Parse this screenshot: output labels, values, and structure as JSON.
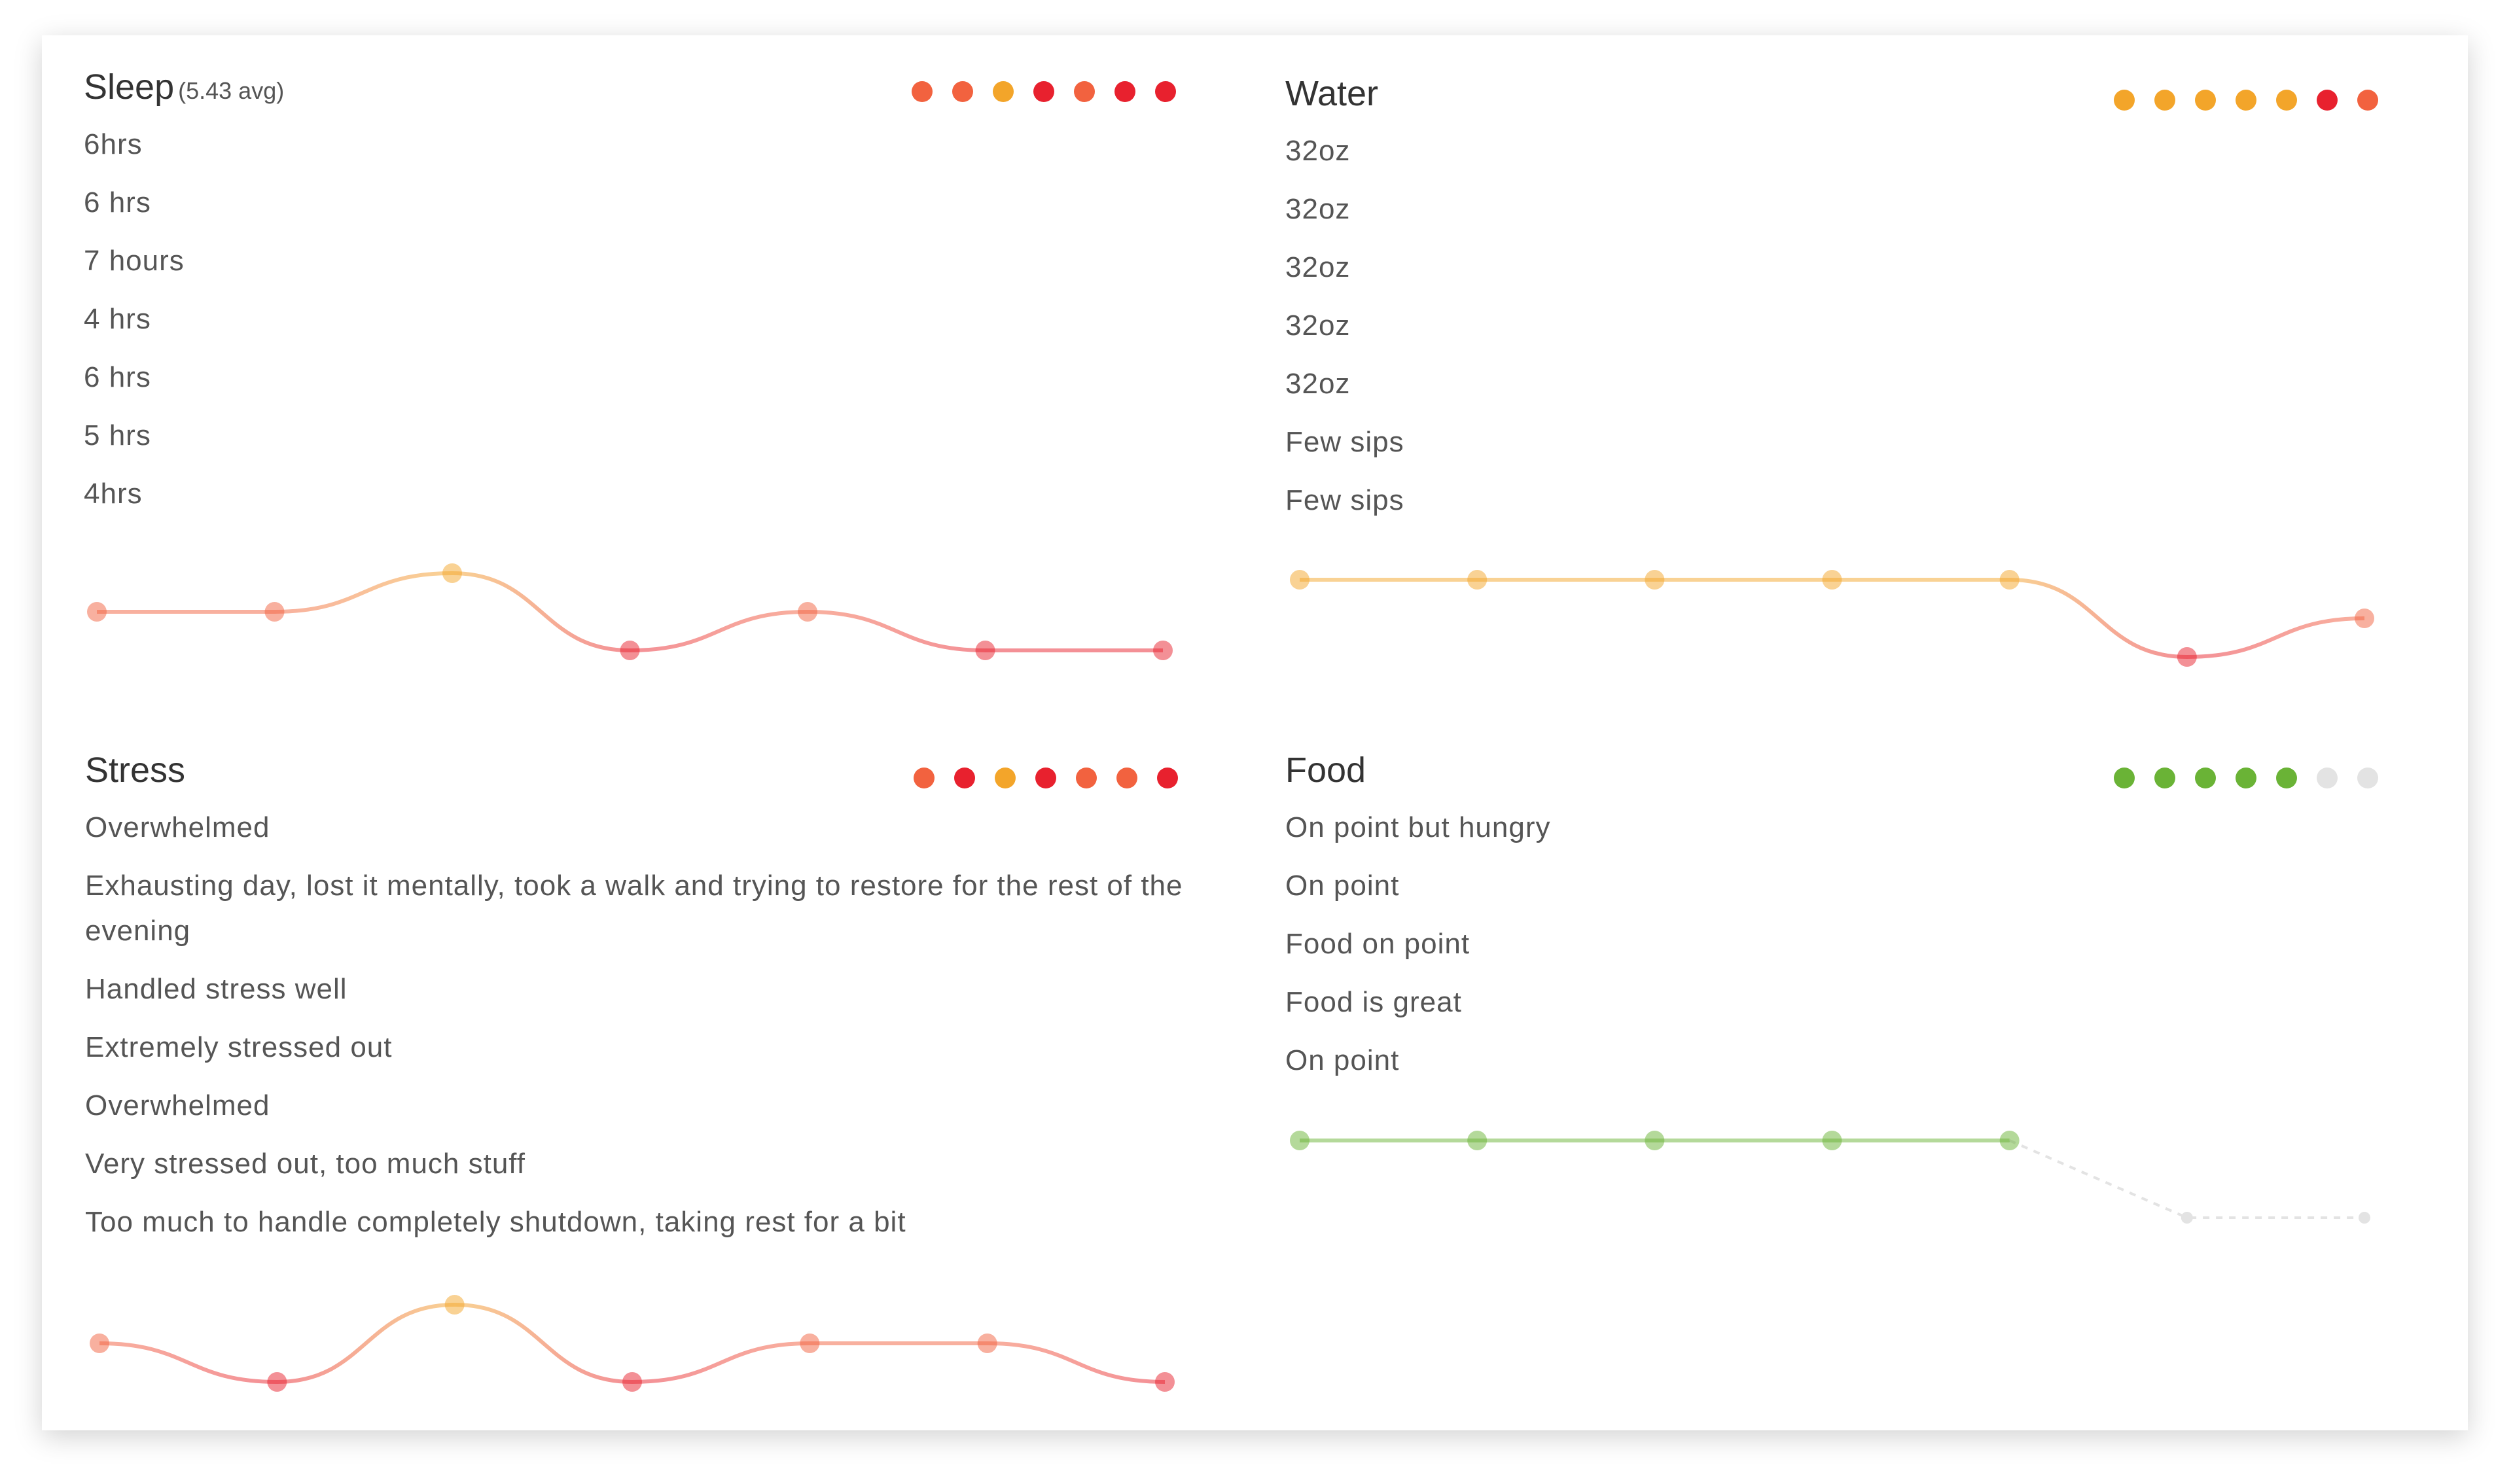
{
  "panels": [
    {
      "title": "Sleep",
      "avg": "(5.43 avg)",
      "entries": [
        "6hrs",
        "6 hrs",
        "7 hours",
        "4 hrs",
        "6 hrs",
        "5 hrs",
        "4hrs"
      ],
      "levels": [
        2,
        2,
        3,
        1,
        2,
        1,
        1
      ],
      "ylim": [
        1,
        3
      ],
      "colors": [
        "#e8212e",
        "#f2623f",
        "#f3a52a"
      ]
    },
    {
      "title": "Water",
      "entries": [
        "32oz",
        "32oz",
        "32oz",
        "32oz",
        "32oz",
        "Few sips",
        "Few sips"
      ],
      "levels": [
        3,
        3,
        3,
        3,
        3,
        1,
        2
      ],
      "ylim": [
        1,
        3
      ],
      "colors": [
        "#e8212e",
        "#f2623f",
        "#f3a52a"
      ]
    },
    {
      "title": "Stress",
      "entries": [
        "Overwhelmed",
        "Exhausting day, lost it mentally, took a walk and trying to restore for the rest of the evening",
        "Handled stress well",
        "Extremely stressed out",
        "Overwhelmed",
        "Very stressed out, too much stuff",
        "Too much to handle completely shutdown, taking rest for a bit"
      ],
      "levels": [
        2,
        1,
        3,
        1,
        2,
        2,
        1
      ],
      "ylim": [
        1,
        3
      ],
      "colors": [
        "#e8212e",
        "#f2623f",
        "#f3a52a"
      ]
    },
    {
      "title": "Food",
      "entries": [
        "On point but hungry",
        "On point",
        "Food on point",
        "Food is great",
        "On point"
      ],
      "levels": [
        3,
        3,
        3,
        3,
        3,
        null,
        null
      ],
      "ylim": [
        1,
        3
      ],
      "colors": [
        "#e8212e",
        "#f2623f",
        "#6ab336"
      ]
    }
  ]
}
